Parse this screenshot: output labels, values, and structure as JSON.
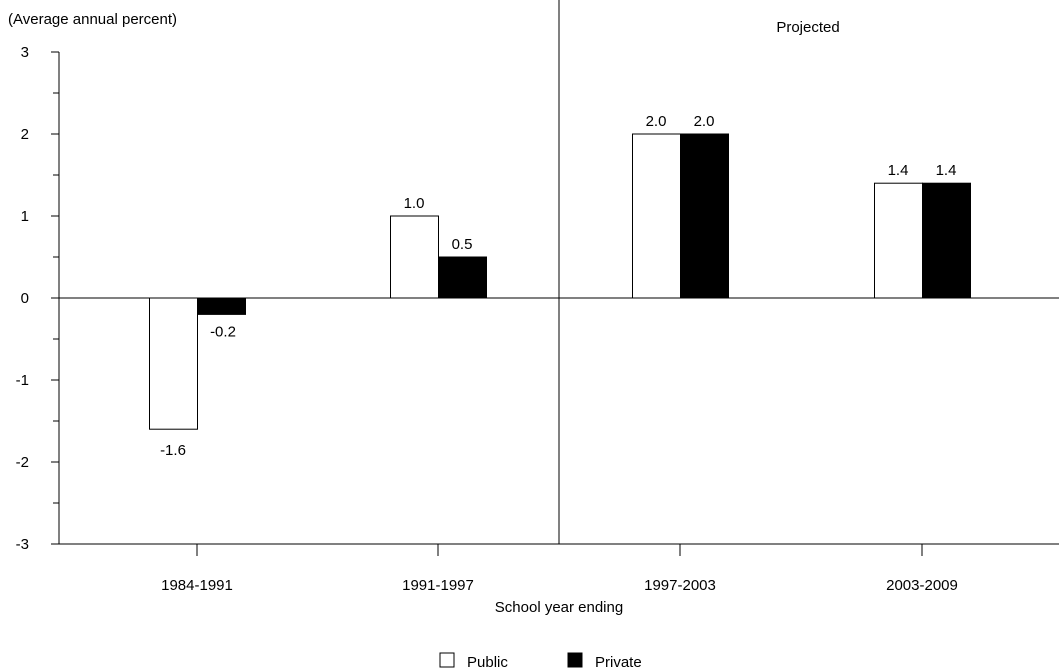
{
  "chart_data": {
    "type": "bar",
    "title": "",
    "ylabel": "(Average annual percent)",
    "xlabel": "School year ending",
    "annotation": "Projected",
    "categories": [
      "1984-1991",
      "1991-1997",
      "1997-2003",
      "2003-2009"
    ],
    "series": [
      {
        "name": "Public",
        "values": [
          -1.6,
          1.0,
          2.0,
          1.4
        ],
        "labels": [
          "-1.6",
          "1.0",
          "2.0",
          "1.4"
        ],
        "color": "#ffffff"
      },
      {
        "name": "Private",
        "values": [
          -0.2,
          0.5,
          2.0,
          1.4
        ],
        "labels": [
          "-0.2",
          "0.5",
          "2.0",
          "1.4"
        ],
        "color": "#000000"
      }
    ],
    "ylim": [
      -3,
      3
    ],
    "yticks": [
      3,
      2,
      1,
      0,
      -1,
      -2,
      -3
    ],
    "grid": false,
    "legend_position": "bottom-center"
  }
}
